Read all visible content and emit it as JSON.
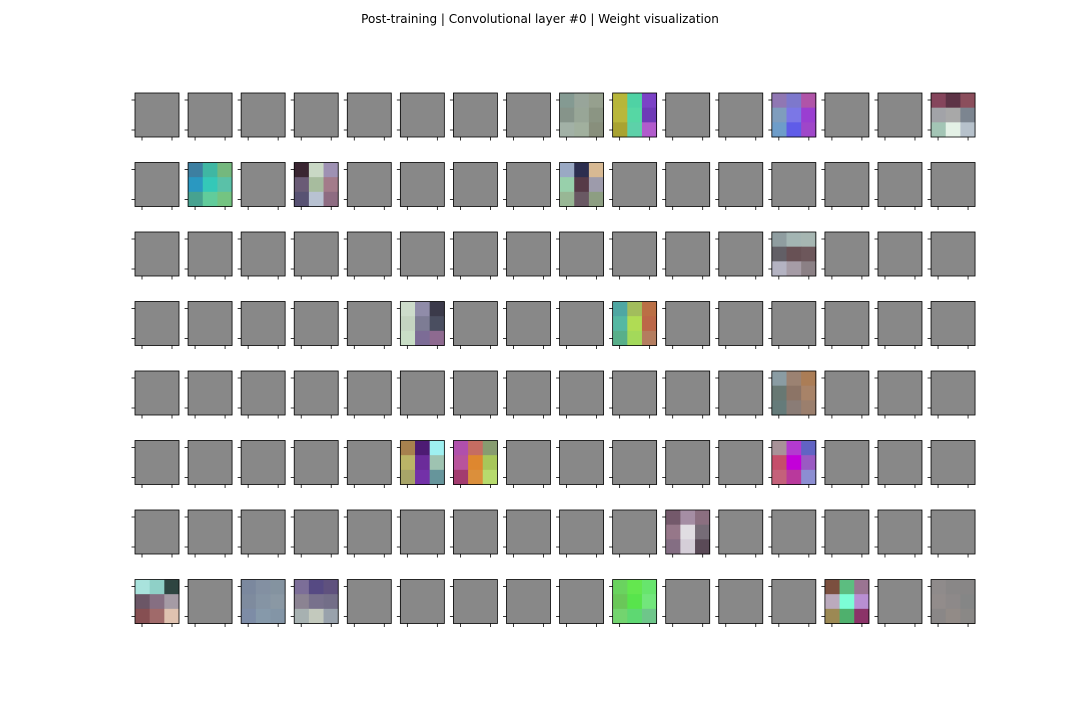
{
  "title": "Post-training | Convolutional layer #0 | Weight visualization",
  "chart_data": {
    "type": "heatmap",
    "title": "Post-training | Convolutional layer #0 | Weight visualization",
    "rows": 8,
    "cols": 16,
    "kernel_size": 3,
    "default_color": "#888888",
    "filters": [
      {
        "index": 8,
        "pixels": [
          "#849a92",
          "#98a59a",
          "#96a08e",
          "#86948a",
          "#98a697",
          "#8b9583",
          "#a2b1a6",
          "#a1b09e",
          "#888f7c"
        ]
      },
      {
        "index": 9,
        "pixels": [
          "#b7b63a",
          "#4fd2a4",
          "#7b42c6",
          "#b9b73b",
          "#56d7a4",
          "#6e3ab7",
          "#a9a331",
          "#5dd1a9",
          "#b15bcc"
        ]
      },
      {
        "index": 12,
        "pixels": [
          "#9077b3",
          "#7d78cc",
          "#b054a8",
          "#7f9dbd",
          "#7b77e6",
          "#9a3ed1",
          "#6e9dc9",
          "#5f5ce8",
          "#9f46c9"
        ]
      },
      {
        "index": 15,
        "pixels": [
          "#85455c",
          "#5d3346",
          "#8b4e5c",
          "#a2a3a8",
          "#a8a8a8",
          "#7c8590",
          "#a3c5b5",
          "#e4f1e6",
          "#b6c1cb"
        ]
      },
      {
        "index": 17,
        "pixels": [
          "#3d7fa1",
          "#3fb7a3",
          "#74b87e",
          "#2a98c1",
          "#34c8b8",
          "#5ac1a8",
          "#47a290",
          "#61cc9b",
          "#74c481"
        ]
      },
      {
        "index": 19,
        "pixels": [
          "#3a2632",
          "#c9d8c5",
          "#9e91b3",
          "#6a5b76",
          "#a7bc9e",
          "#a37b8a",
          "#585273",
          "#b8c2d2",
          "#8e6c82"
        ]
      },
      {
        "index": 24,
        "pixels": [
          "#9aa9c4",
          "#2c2e4f",
          "#d7b993",
          "#98d0ab",
          "#563a47",
          "#9d9bab",
          "#98b795",
          "#695863",
          "#8d9e82"
        ]
      },
      {
        "index": 44,
        "pixels": [
          "#8f9da0",
          "#a3b5b3",
          "#a6b6b2",
          "#625f66",
          "#685155",
          "#6d575b",
          "#b4b3c2",
          "#a69ca6",
          "#8b8085"
        ]
      },
      {
        "index": 53,
        "pixels": [
          "#cddccb",
          "#908ca9",
          "#3b3a4a",
          "#c4d4c1",
          "#7d7c94",
          "#4a4e60",
          "#c9dec6",
          "#7c6c96",
          "#8e6a90"
        ]
      },
      {
        "index": 57,
        "pixels": [
          "#4fa7a3",
          "#a2bd5c",
          "#bb6f45",
          "#55b8a3",
          "#b0dc54",
          "#bc6748",
          "#58af8a",
          "#a3d95a",
          "#b47d5f"
        ]
      },
      {
        "index": 76,
        "pixels": [
          "#8a9ca3",
          "#9b8272",
          "#ab7d56",
          "#687873",
          "#8c7466",
          "#a88368",
          "#657b7a",
          "#8a7c76",
          "#9b7f6d"
        ]
      },
      {
        "index": 85,
        "pixels": [
          "#a7814e",
          "#4d1b73",
          "#9ef0f0",
          "#bbb567",
          "#6b2c9a",
          "#9ec3b1",
          "#a8a568",
          "#7331a8",
          "#66959b"
        ]
      },
      {
        "index": 86,
        "pixels": [
          "#b04fac",
          "#c56d62",
          "#879c70",
          "#b8539c",
          "#de872f",
          "#a7c75a",
          "#a33b6f",
          "#db8f3b",
          "#b7db6d"
        ]
      },
      {
        "index": 92,
        "pixels": [
          "#a89298",
          "#b33ad0",
          "#6163c4",
          "#c54e6a",
          "#c300d9",
          "#9a5ac3",
          "#c4617a",
          "#b9399c",
          "#8c8ed2"
        ]
      },
      {
        "index": 106,
        "pixels": [
          "#74596b",
          "#a58ea4",
          "#8b6f80",
          "#967789",
          "#e0dde2",
          "#766c77",
          "#846e83",
          "#d5ced8",
          "#5a4a57"
        ]
      },
      {
        "index": 112,
        "pixels": [
          "#a9e3dd",
          "#8fd0c7",
          "#2e4541",
          "#6b5666",
          "#866f82",
          "#a59ba5",
          "#864f52",
          "#a06a6a",
          "#dfc2b0"
        ]
      },
      {
        "index": 114,
        "pixels": [
          "#7b889e",
          "#8390a2",
          "#8493a0",
          "#7e8b9e",
          "#8594a4",
          "#8a98a4",
          "#7d8ca6",
          "#8699aa",
          "#8395a6"
        ]
      },
      {
        "index": 115,
        "pixels": [
          "#7c6e98",
          "#564a83",
          "#5f517e",
          "#8b8392",
          "#78718c",
          "#736e88",
          "#a7b1b1",
          "#c3c9bd",
          "#99a2ac"
        ]
      },
      {
        "index": 121,
        "pixels": [
          "#6ad35f",
          "#64e74f",
          "#67e56d",
          "#6ac759",
          "#58e44c",
          "#72e67c",
          "#73d46f",
          "#5ed872",
          "#6ec68a"
        ]
      },
      {
        "index": 125,
        "pixels": [
          "#7b4f3f",
          "#5cbd80",
          "#9a7492",
          "#bbaabd",
          "#7cfed6",
          "#b98fd3",
          "#9c8954",
          "#4fb06d",
          "#8b3368"
        ]
      },
      {
        "index": 127,
        "pixels": [
          "#8f8b8b",
          "#898787",
          "#888686",
          "#928c8b",
          "#8d8989",
          "#858686",
          "#8a8787",
          "#928b87",
          "#8a8886"
        ]
      }
    ]
  }
}
